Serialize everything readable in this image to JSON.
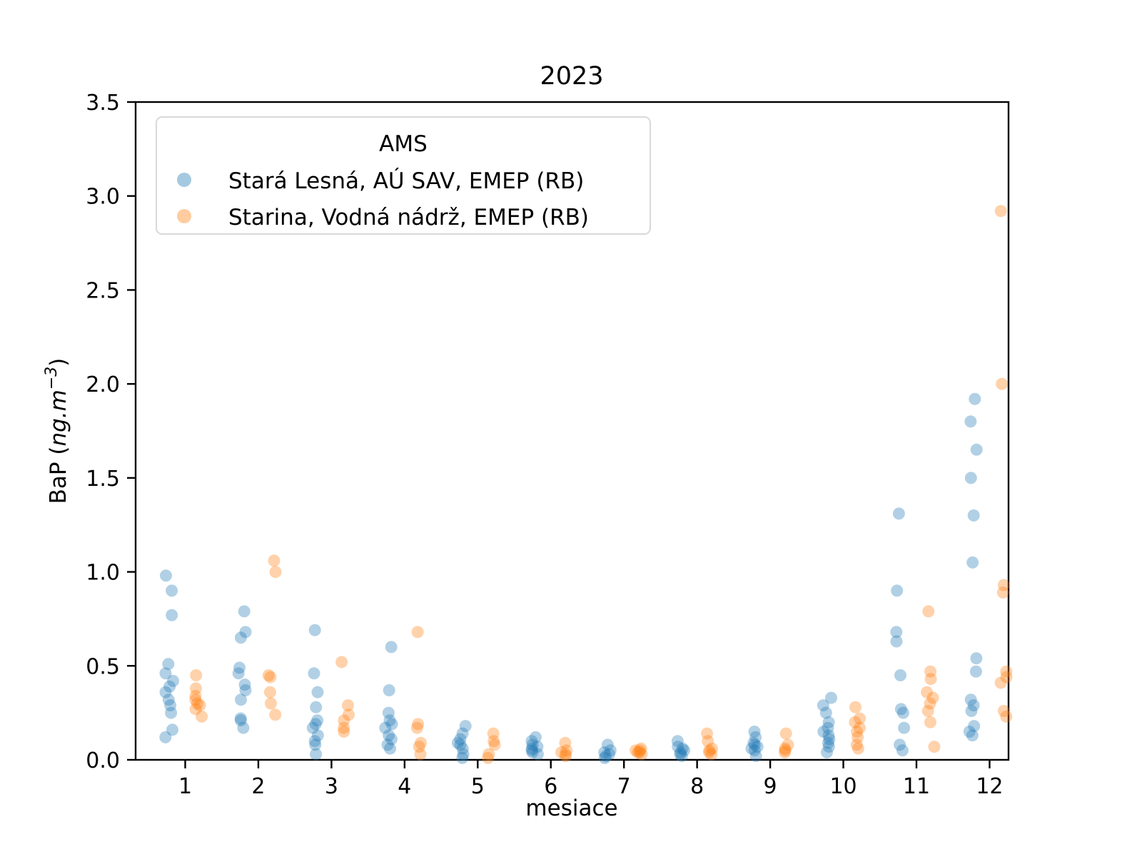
{
  "title": "2023",
  "xlabel": "mesiace",
  "ylabel": {
    "prefix": "BaP  (",
    "unit_italic": "ng.m",
    "exponent": "−3",
    "close": ")"
  },
  "legend": {
    "title": "AMS",
    "entries": [
      {
        "label": "Stará Lesná, AÚ SAV, EMEP (RB)",
        "color": "#1f77b4"
      },
      {
        "label": "Starina, Vodná nádrž, EMEP (RB)",
        "color": "#ff7f0e"
      }
    ]
  },
  "axes": {
    "x_ticks": [
      "1",
      "2",
      "3",
      "4",
      "5",
      "6",
      "7",
      "8",
      "9",
      "10",
      "11",
      "12"
    ],
    "y_ticks": [
      "0.0",
      "0.5",
      "1.0",
      "1.5",
      "2.0",
      "2.5",
      "3.0",
      "3.5"
    ]
  },
  "chart_data": {
    "type": "scatter",
    "title": "2023",
    "xlabel": "mesiace",
    "ylabel": "BaP (ng.m−3)",
    "x_tick_values": [
      1,
      2,
      3,
      4,
      5,
      6,
      7,
      8,
      9,
      10,
      11,
      12
    ],
    "ylim": [
      0.0,
      3.5
    ],
    "grid": false,
    "legend_position": "upper-left",
    "marker_alpha": 0.35,
    "marker_radius_px": 8.5,
    "series": [
      {
        "name": "Stará Lesná, AÚ SAV, EMEP (RB)",
        "color": "#1f77b4",
        "dodge": -0.22,
        "points": [
          [
            1,
            0.98
          ],
          [
            1,
            0.9
          ],
          [
            1,
            0.77
          ],
          [
            1,
            0.51
          ],
          [
            1,
            0.46
          ],
          [
            1,
            0.42
          ],
          [
            1,
            0.39
          ],
          [
            1,
            0.36
          ],
          [
            1,
            0.32
          ],
          [
            1,
            0.29
          ],
          [
            1,
            0.25
          ],
          [
            1,
            0.16
          ],
          [
            1,
            0.12
          ],
          [
            2,
            0.79
          ],
          [
            2,
            0.68
          ],
          [
            2,
            0.65
          ],
          [
            2,
            0.49
          ],
          [
            2,
            0.46
          ],
          [
            2,
            0.4
          ],
          [
            2,
            0.37
          ],
          [
            2,
            0.32
          ],
          [
            2,
            0.22
          ],
          [
            2,
            0.21
          ],
          [
            2,
            0.17
          ],
          [
            3,
            0.69
          ],
          [
            3,
            0.46
          ],
          [
            3,
            0.36
          ],
          [
            3,
            0.28
          ],
          [
            3,
            0.21
          ],
          [
            3,
            0.19
          ],
          [
            3,
            0.17
          ],
          [
            3,
            0.13
          ],
          [
            3,
            0.1
          ],
          [
            3,
            0.08
          ],
          [
            3,
            0.03
          ],
          [
            4,
            0.6
          ],
          [
            4,
            0.37
          ],
          [
            4,
            0.25
          ],
          [
            4,
            0.21
          ],
          [
            4,
            0.19
          ],
          [
            4,
            0.17
          ],
          [
            4,
            0.13
          ],
          [
            4,
            0.11
          ],
          [
            4,
            0.08
          ],
          [
            4,
            0.06
          ],
          [
            5,
            0.18
          ],
          [
            5,
            0.14
          ],
          [
            5,
            0.11
          ],
          [
            5,
            0.09
          ],
          [
            5,
            0.08
          ],
          [
            5,
            0.06
          ],
          [
            5,
            0.03
          ],
          [
            5,
            0.01
          ],
          [
            6,
            0.12
          ],
          [
            6,
            0.1
          ],
          [
            6,
            0.08
          ],
          [
            6,
            0.07
          ],
          [
            6,
            0.06
          ],
          [
            6,
            0.05
          ],
          [
            6,
            0.04
          ],
          [
            6,
            0.03
          ],
          [
            7,
            0.08
          ],
          [
            7,
            0.05
          ],
          [
            7,
            0.04
          ],
          [
            7,
            0.03
          ],
          [
            7,
            0.02
          ],
          [
            7,
            0.01
          ],
          [
            8,
            0.1
          ],
          [
            8,
            0.07
          ],
          [
            8,
            0.06
          ],
          [
            8,
            0.05
          ],
          [
            8,
            0.04
          ],
          [
            8,
            0.03
          ],
          [
            8,
            0.02
          ],
          [
            9,
            0.15
          ],
          [
            9,
            0.12
          ],
          [
            9,
            0.09
          ],
          [
            9,
            0.08
          ],
          [
            9,
            0.07
          ],
          [
            9,
            0.06
          ],
          [
            9,
            0.05
          ],
          [
            9,
            0.02
          ],
          [
            10,
            0.33
          ],
          [
            10,
            0.29
          ],
          [
            10,
            0.25
          ],
          [
            10,
            0.2
          ],
          [
            10,
            0.17
          ],
          [
            10,
            0.15
          ],
          [
            10,
            0.13
          ],
          [
            10,
            0.11
          ],
          [
            10,
            0.09
          ],
          [
            10,
            0.07
          ],
          [
            10,
            0.04
          ],
          [
            11,
            1.31
          ],
          [
            11,
            0.9
          ],
          [
            11,
            0.68
          ],
          [
            11,
            0.63
          ],
          [
            11,
            0.45
          ],
          [
            11,
            0.27
          ],
          [
            11,
            0.25
          ],
          [
            11,
            0.17
          ],
          [
            11,
            0.08
          ],
          [
            11,
            0.05
          ],
          [
            12,
            1.92
          ],
          [
            12,
            1.8
          ],
          [
            12,
            1.65
          ],
          [
            12,
            1.5
          ],
          [
            12,
            1.3
          ],
          [
            12,
            1.05
          ],
          [
            12,
            0.54
          ],
          [
            12,
            0.47
          ],
          [
            12,
            0.32
          ],
          [
            12,
            0.29
          ],
          [
            12,
            0.26
          ],
          [
            12,
            0.18
          ],
          [
            12,
            0.15
          ],
          [
            12,
            0.13
          ]
        ]
      },
      {
        "name": "Starina, Vodná nádrž, EMEP (RB)",
        "color": "#ff7f0e",
        "dodge": 0.19,
        "points": [
          [
            1,
            0.45
          ],
          [
            1,
            0.38
          ],
          [
            1,
            0.34
          ],
          [
            1,
            0.32
          ],
          [
            1,
            0.3
          ],
          [
            1,
            0.29
          ],
          [
            1,
            0.27
          ],
          [
            1,
            0.23
          ],
          [
            2,
            1.06
          ],
          [
            2,
            1.0
          ],
          [
            2,
            0.45
          ],
          [
            2,
            0.44
          ],
          [
            2,
            0.36
          ],
          [
            2,
            0.3
          ],
          [
            2,
            0.24
          ],
          [
            3,
            0.52
          ],
          [
            3,
            0.29
          ],
          [
            3,
            0.24
          ],
          [
            3,
            0.21
          ],
          [
            3,
            0.17
          ],
          [
            3,
            0.15
          ],
          [
            4,
            0.68
          ],
          [
            4,
            0.19
          ],
          [
            4,
            0.17
          ],
          [
            4,
            0.09
          ],
          [
            4,
            0.07
          ],
          [
            4,
            0.03
          ],
          [
            5,
            0.14
          ],
          [
            5,
            0.1
          ],
          [
            5,
            0.08
          ],
          [
            5,
            0.03
          ],
          [
            5,
            0.01
          ],
          [
            6,
            0.09
          ],
          [
            6,
            0.05
          ],
          [
            6,
            0.04
          ],
          [
            6,
            0.03
          ],
          [
            6,
            0.02
          ],
          [
            7,
            0.06
          ],
          [
            7,
            0.05
          ],
          [
            7,
            0.05
          ],
          [
            7,
            0.04
          ],
          [
            7,
            0.04
          ],
          [
            7,
            0.03
          ],
          [
            8,
            0.14
          ],
          [
            8,
            0.1
          ],
          [
            8,
            0.06
          ],
          [
            8,
            0.05
          ],
          [
            8,
            0.04
          ],
          [
            8,
            0.03
          ],
          [
            9,
            0.14
          ],
          [
            9,
            0.08
          ],
          [
            9,
            0.06
          ],
          [
            9,
            0.05
          ],
          [
            9,
            0.04
          ],
          [
            10,
            0.28
          ],
          [
            10,
            0.22
          ],
          [
            10,
            0.2
          ],
          [
            10,
            0.17
          ],
          [
            10,
            0.15
          ],
          [
            10,
            0.12
          ],
          [
            10,
            0.08
          ],
          [
            10,
            0.06
          ],
          [
            11,
            0.79
          ],
          [
            11,
            0.47
          ],
          [
            11,
            0.43
          ],
          [
            11,
            0.36
          ],
          [
            11,
            0.33
          ],
          [
            11,
            0.3
          ],
          [
            11,
            0.26
          ],
          [
            11,
            0.2
          ],
          [
            11,
            0.07
          ],
          [
            12,
            2.92
          ],
          [
            12,
            2.0
          ],
          [
            12,
            0.93
          ],
          [
            12,
            0.89
          ],
          [
            12,
            0.47
          ],
          [
            12,
            0.44
          ],
          [
            12,
            0.41
          ],
          [
            12,
            0.26
          ],
          [
            12,
            0.23
          ]
        ]
      }
    ]
  }
}
